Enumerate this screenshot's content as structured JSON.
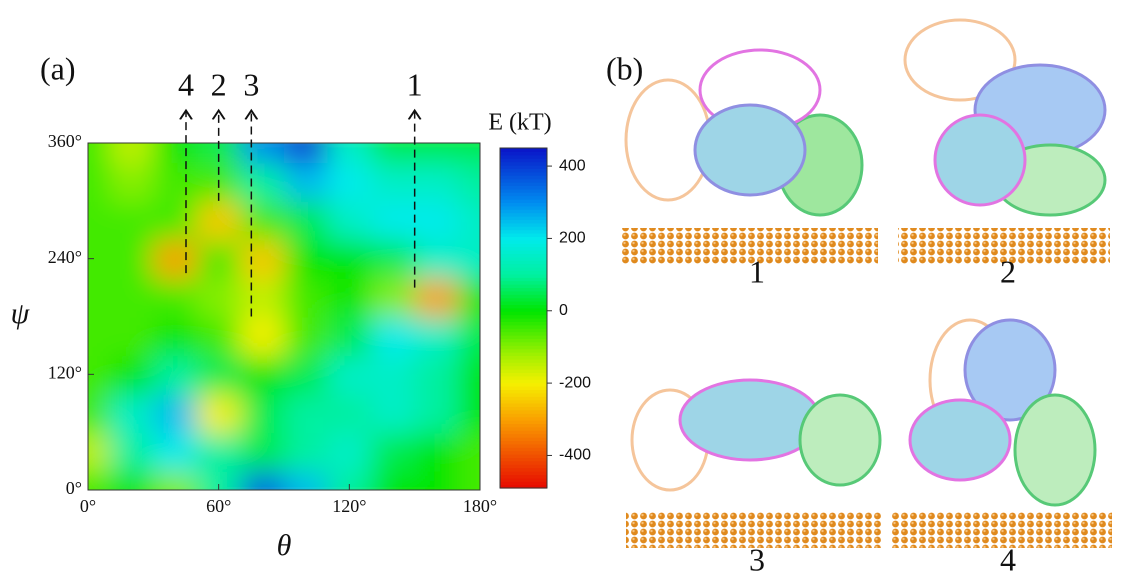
{
  "chart_data": {
    "type": "contour",
    "panel_label": "(a)",
    "xlabel": "θ",
    "ylabel": "ψ",
    "x": [
      0,
      20,
      40,
      60,
      80,
      100,
      120,
      140,
      160,
      180
    ],
    "y": [
      0,
      40,
      80,
      120,
      160,
      200,
      240,
      280,
      320,
      360
    ],
    "z": [
      [
        -50,
        0,
        -100,
        100,
        350,
        250,
        100,
        0,
        0,
        -50
      ],
      [
        -150,
        100,
        200,
        100,
        50,
        100,
        150,
        50,
        0,
        -50
      ],
      [
        -50,
        150,
        250,
        -200,
        50,
        100,
        100,
        150,
        100,
        0
      ],
      [
        -50,
        0,
        100,
        50,
        0,
        50,
        150,
        150,
        100,
        0
      ],
      [
        -50,
        -50,
        0,
        -50,
        -200,
        -50,
        50,
        200,
        150,
        50
      ],
      [
        -50,
        -50,
        -50,
        -100,
        -150,
        -50,
        0,
        -100,
        -300,
        0
      ],
      [
        -50,
        -50,
        -300,
        -50,
        -250,
        0,
        0,
        50,
        150,
        150
      ],
      [
        -50,
        -50,
        -50,
        -250,
        -50,
        50,
        150,
        200,
        200,
        150
      ],
      [
        -50,
        -100,
        -50,
        -50,
        100,
        250,
        200,
        150,
        150,
        100
      ],
      [
        -50,
        -150,
        0,
        50,
        300,
        400,
        150,
        50,
        50,
        50
      ]
    ],
    "xlim": [
      0,
      180
    ],
    "xticks": [
      {
        "value": 0,
        "label": "0°"
      },
      {
        "value": 60,
        "label": "60°"
      },
      {
        "value": 120,
        "label": "120°"
      },
      {
        "value": 180,
        "label": "180°"
      }
    ],
    "ylim": [
      0,
      360
    ],
    "yticks": [
      {
        "value": 0,
        "label": "0°"
      },
      {
        "value": 120,
        "label": "120°"
      },
      {
        "value": 240,
        "label": "240°"
      },
      {
        "value": 360,
        "label": "360°"
      }
    ],
    "colorbar_label": "E (kT)",
    "clim": [
      -490,
      450
    ],
    "cticks": [
      -400,
      -200,
      0,
      200,
      400
    ],
    "annotations": [
      {
        "label": "4",
        "x": 45,
        "y": 225
      },
      {
        "label": "2",
        "x": 60,
        "y": 300
      },
      {
        "label": "3",
        "x": 75,
        "y": 180
      },
      {
        "label": "1",
        "x": 150,
        "y": 210
      }
    ]
  },
  "panel_b": {
    "label": "(b)",
    "structures": [
      "1",
      "2",
      "3",
      "4"
    ]
  }
}
